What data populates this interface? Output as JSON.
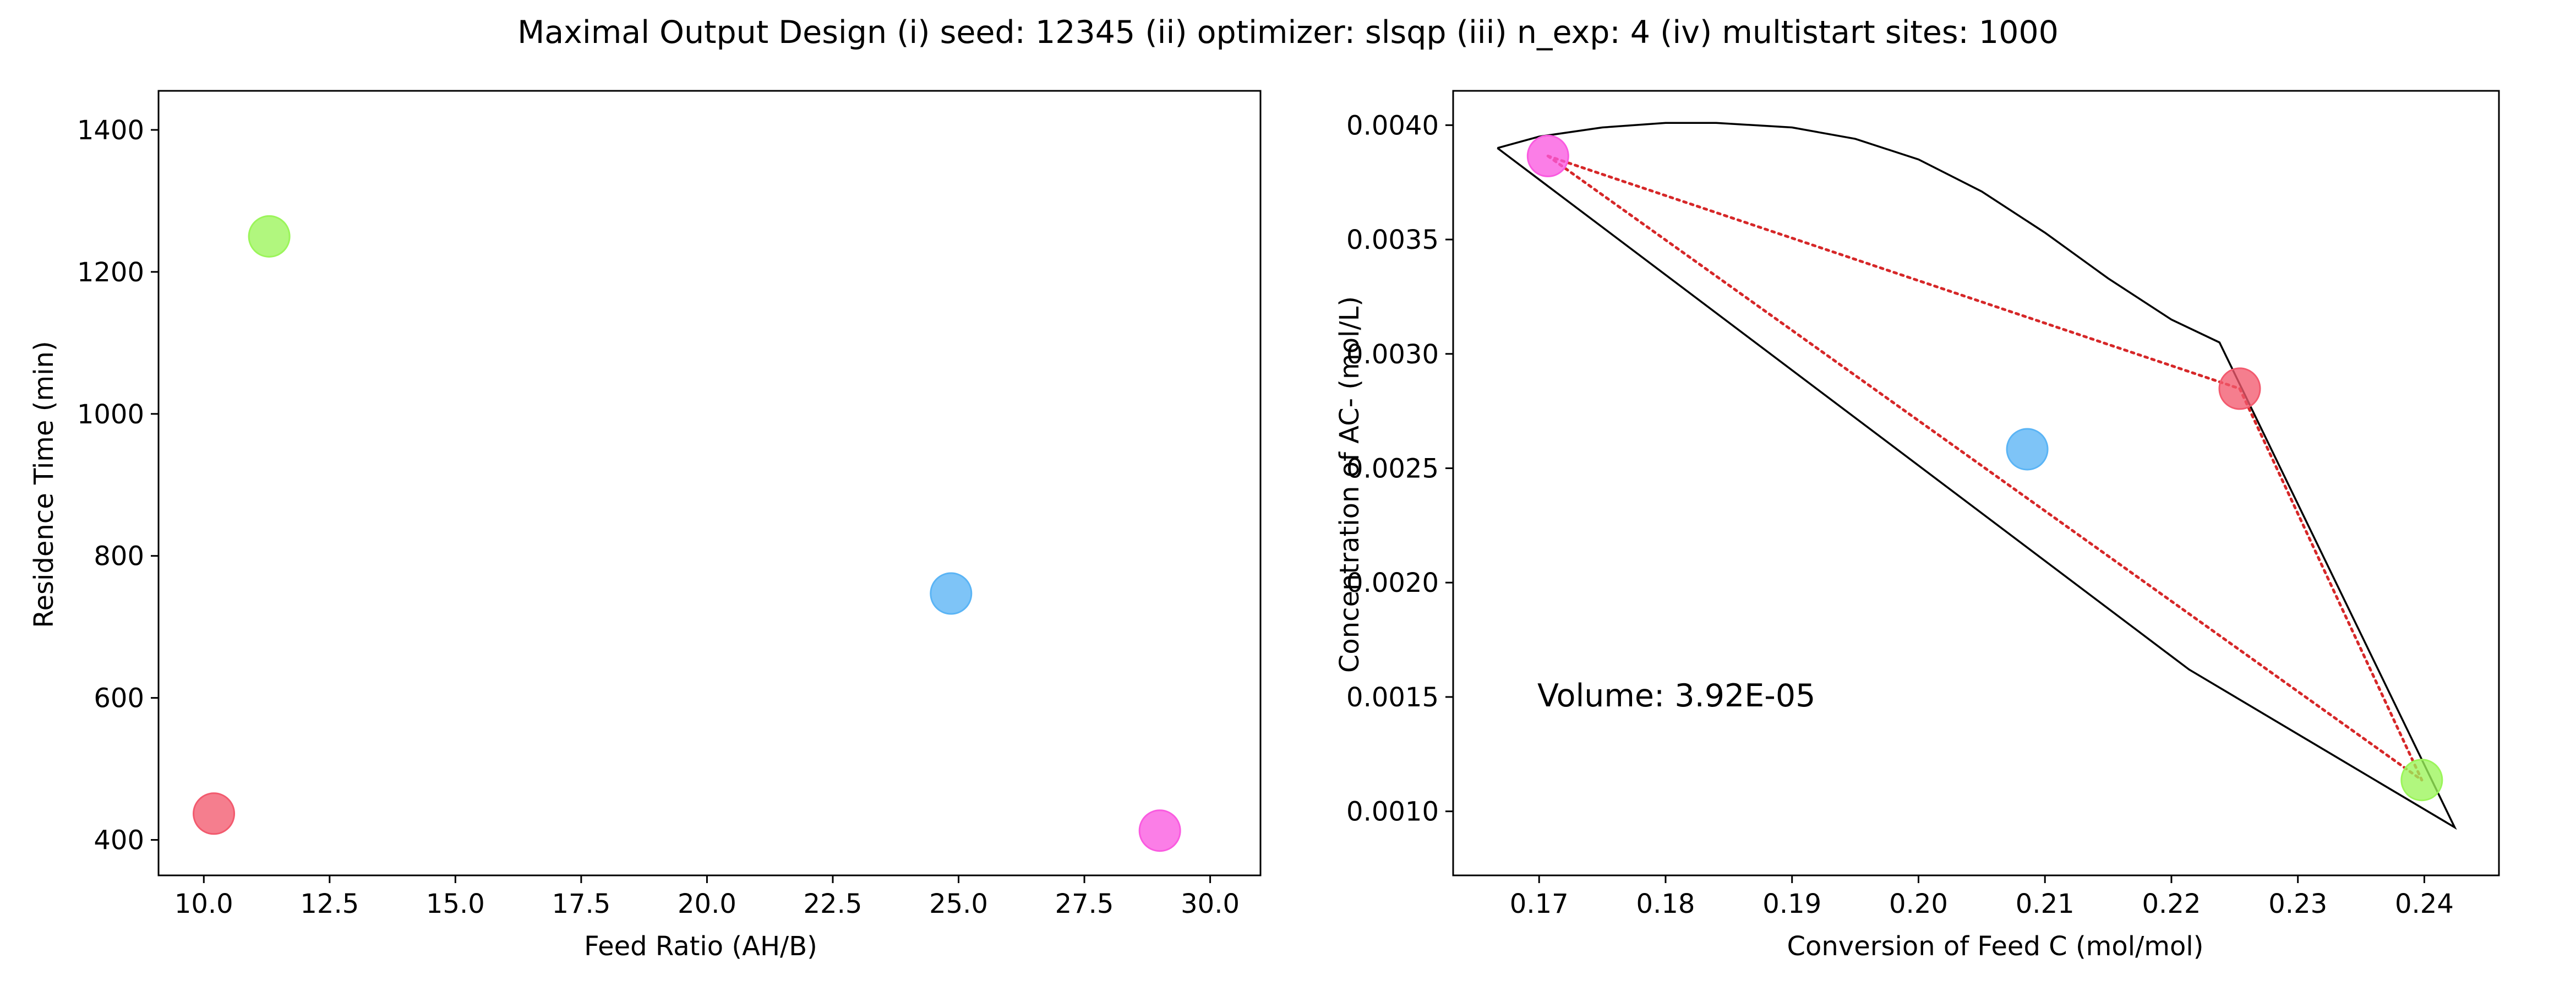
{
  "figure": {
    "suptitle": "Maximal Output Design (i) seed: 12345 (ii) optimizer: slsqp (iii) n_exp: 4 (iv) multistart sites: 1000"
  },
  "colors": {
    "red": "#f25a6e",
    "blue": "#5ab4f5",
    "green": "#9bf55a",
    "magenta": "#fa5ae0",
    "dotted": "#d62728",
    "annotation": "#d62728",
    "axes": "#000000"
  },
  "chart_data": [
    {
      "type": "scatter",
      "xlabel": "Feed Ratio (AH/B)",
      "ylabel": "Residence Time (min)",
      "xlim": [
        9.1,
        31.0
      ],
      "ylim": [
        350,
        1455
      ],
      "xticks": [
        "10.0",
        "12.5",
        "15.0",
        "17.5",
        "20.0",
        "22.5",
        "25.0",
        "27.5",
        "30.0"
      ],
      "yticks": [
        "400",
        "600",
        "800",
        "1000",
        "1200",
        "1400"
      ],
      "grid": false,
      "points": [
        {
          "x": 10.2,
          "y": 437,
          "color": "red"
        },
        {
          "x": 11.3,
          "y": 1250,
          "color": "green"
        },
        {
          "x": 24.85,
          "y": 747,
          "color": "blue"
        },
        {
          "x": 29.0,
          "y": 413,
          "color": "magenta"
        }
      ]
    },
    {
      "type": "scatter",
      "xlabel": "Conversion of Feed C (mol/mol)",
      "ylabel": "Concentration of AC- (mol/L)",
      "xlim": [
        0.1632,
        0.2459
      ],
      "ylim": [
        0.00072,
        0.00415
      ],
      "xticks": [
        "0.17",
        "0.18",
        "0.19",
        "0.20",
        "0.21",
        "0.22",
        "0.23",
        "0.24"
      ],
      "yticks": [
        "0.0010",
        "0.0015",
        "0.0020",
        "0.0025",
        "0.0030",
        "0.0035",
        "0.0040"
      ],
      "grid": false,
      "annotation": "Volume: 3.92E-05",
      "points": [
        {
          "x": 0.1707,
          "y": 0.003865,
          "color": "magenta"
        },
        {
          "x": 0.2254,
          "y": 0.002848,
          "color": "red"
        },
        {
          "x": 0.2086,
          "y": 0.002583,
          "color": "blue"
        },
        {
          "x": 0.2398,
          "y": 0.001137,
          "color": "green"
        }
      ],
      "boundary": [
        [
          0.1667,
          0.0039
        ],
        [
          0.17,
          0.00395
        ],
        [
          0.175,
          0.00399
        ],
        [
          0.18,
          0.00401
        ],
        [
          0.184,
          0.00401
        ],
        [
          0.19,
          0.00399
        ],
        [
          0.195,
          0.00394
        ],
        [
          0.2,
          0.00385
        ],
        [
          0.205,
          0.00371
        ],
        [
          0.21,
          0.00353
        ],
        [
          0.215,
          0.00333
        ],
        [
          0.22,
          0.00315
        ],
        [
          0.2238,
          0.00305
        ],
        [
          0.2424,
          0.00093
        ],
        [
          0.2214,
          0.00162
        ],
        [
          0.1667,
          0.0039
        ]
      ],
      "dotted_edges": [
        [
          [
            0.1707,
            0.003865
          ],
          [
            0.2254,
            0.002848
          ]
        ],
        [
          [
            0.1707,
            0.003865
          ],
          [
            0.2398,
            0.001137
          ]
        ],
        [
          [
            0.2254,
            0.002848
          ],
          [
            0.2398,
            0.001137
          ]
        ]
      ]
    }
  ]
}
